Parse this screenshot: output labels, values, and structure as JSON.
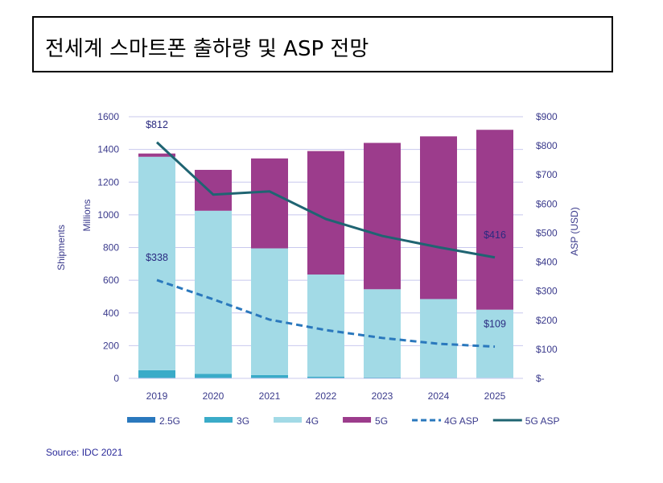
{
  "title": "전세계 스마트폰 출하량 및 ASP 전망",
  "source": "Source: IDC 2021",
  "chart_data": {
    "type": "bar",
    "stacked": true,
    "categories": [
      "2019",
      "2020",
      "2021",
      "2022",
      "2023",
      "2024",
      "2025"
    ],
    "ylabel": "Shipments",
    "ylabel2": "Millions",
    "y2label": "ASP (USD)",
    "ylim": [
      0,
      1600
    ],
    "yticks": [
      "0",
      "200",
      "400",
      "600",
      "800",
      "1000",
      "1200",
      "1400",
      "1600"
    ],
    "y2lim": [
      0,
      900
    ],
    "y2ticks": [
      "$-",
      "$100",
      "$200",
      "$300",
      "$400",
      "$500",
      "$600",
      "$700",
      "$800",
      "$900"
    ],
    "grid": true,
    "legend_placement": "bottom",
    "series": [
      {
        "name": "2.5G",
        "kind": "bar",
        "color": "#2a78bd",
        "values": [
          0,
          0,
          0,
          0,
          0,
          0,
          0
        ]
      },
      {
        "name": "3G",
        "kind": "bar",
        "color": "#3aabc8",
        "values": [
          50,
          28,
          20,
          10,
          5,
          4,
          3
        ]
      },
      {
        "name": "4G",
        "kind": "bar",
        "color": "#a2dae6",
        "values": [
          1305,
          997,
          775,
          625,
          540,
          481,
          417
        ]
      },
      {
        "name": "5G",
        "kind": "bar",
        "color": "#9c3c8c",
        "values": [
          20,
          250,
          550,
          755,
          895,
          995,
          1100
        ]
      },
      {
        "name": "4G ASP",
        "kind": "line",
        "dashed": true,
        "axis": "right",
        "color": "#2a78bd",
        "values": [
          338,
          272,
          202,
          166,
          139,
          119,
          109
        ]
      },
      {
        "name": "5G ASP",
        "kind": "line",
        "dashed": false,
        "axis": "right",
        "color": "#1f6472",
        "values": [
          812,
          632,
          643,
          548,
          490,
          451,
          416
        ]
      }
    ],
    "data_labels": [
      {
        "series": "5G ASP",
        "category": "2019",
        "text": "$812"
      },
      {
        "series": "4G ASP",
        "category": "2019",
        "text": "$338"
      },
      {
        "series": "5G ASP",
        "category": "2025",
        "text": "$416"
      },
      {
        "series": "4G ASP",
        "category": "2025",
        "text": "$109"
      }
    ]
  }
}
